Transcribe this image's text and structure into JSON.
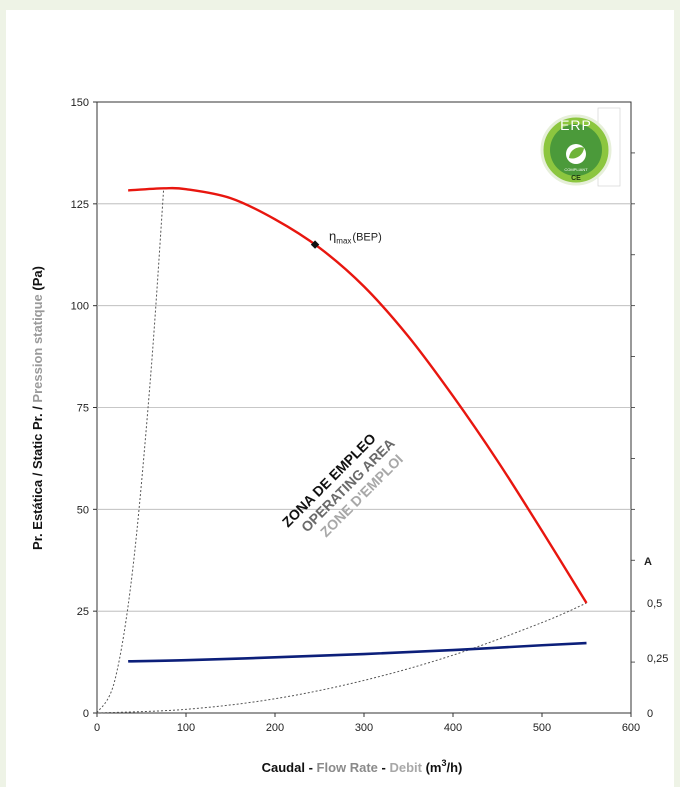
{
  "chart_data": {
    "type": "line",
    "title": "",
    "xlabel_parts": [
      "Caudal",
      " - ",
      "Flow Rate",
      " - ",
      "Debit",
      " (m",
      "3",
      "/h)"
    ],
    "ylabel_parts": [
      "Pr. Estática / Static Pr. / ",
      "Pression statique",
      " (Pa)"
    ],
    "xlim": [
      0,
      600
    ],
    "ylim": [
      0,
      150
    ],
    "x_ticks": [
      "0",
      "100",
      "200",
      "300",
      "400",
      "500",
      "600"
    ],
    "y_ticks": [
      "0",
      "25",
      "50",
      "75",
      "100",
      "125",
      "150"
    ],
    "y2_label": "A",
    "y2_ticks": [
      "0",
      "0,25",
      "0,5"
    ],
    "grid": true,
    "series": [
      {
        "role": "pressure",
        "color": "#e8160f",
        "x": [
          35,
          75,
          100,
          150,
          200,
          250,
          300,
          350,
          400,
          450,
          500,
          550
        ],
        "y": [
          128.3,
          128.8,
          128.6,
          126.4,
          121.2,
          114.2,
          104.7,
          92.4,
          77.8,
          61.9,
          44.7,
          27
        ]
      },
      {
        "role": "current",
        "color": "#0c1f7a",
        "x": [
          35,
          100,
          200,
          300,
          400,
          500,
          550
        ],
        "y": [
          0.235,
          0.24,
          0.253,
          0.268,
          0.286,
          0.308,
          0.318
        ]
      }
    ],
    "operating_limits": [
      {
        "x": [
          0,
          20,
          40,
          60,
          75
        ],
        "y": [
          0,
          8,
          35,
          82,
          129
        ]
      },
      {
        "x": [
          0,
          100,
          200,
          300,
          400,
          500,
          550
        ],
        "y": [
          0,
          0.9,
          3.5,
          8.0,
          14.2,
          22.2,
          27
        ]
      }
    ],
    "bep": {
      "x": 245,
      "y": 115,
      "label_main": "η",
      "label_sub": "max",
      "label_tail": "(BEP)"
    },
    "zone_labels": [
      {
        "text": "ZONA DE EMPLEO",
        "color": "#111111"
      },
      {
        "text": "OPERATING AREA",
        "color": "#6a6a6a"
      },
      {
        "text": "ZONE D'EMPLOI",
        "color": "#a8a8a8"
      }
    ]
  },
  "badge": {
    "text": "ERP",
    "sub": "COMPLIANT",
    "mark": "CE",
    "colors": {
      "ring": "#8cc63f",
      "fill": "#4b9a3a",
      "dark": "#2f6b27"
    }
  }
}
